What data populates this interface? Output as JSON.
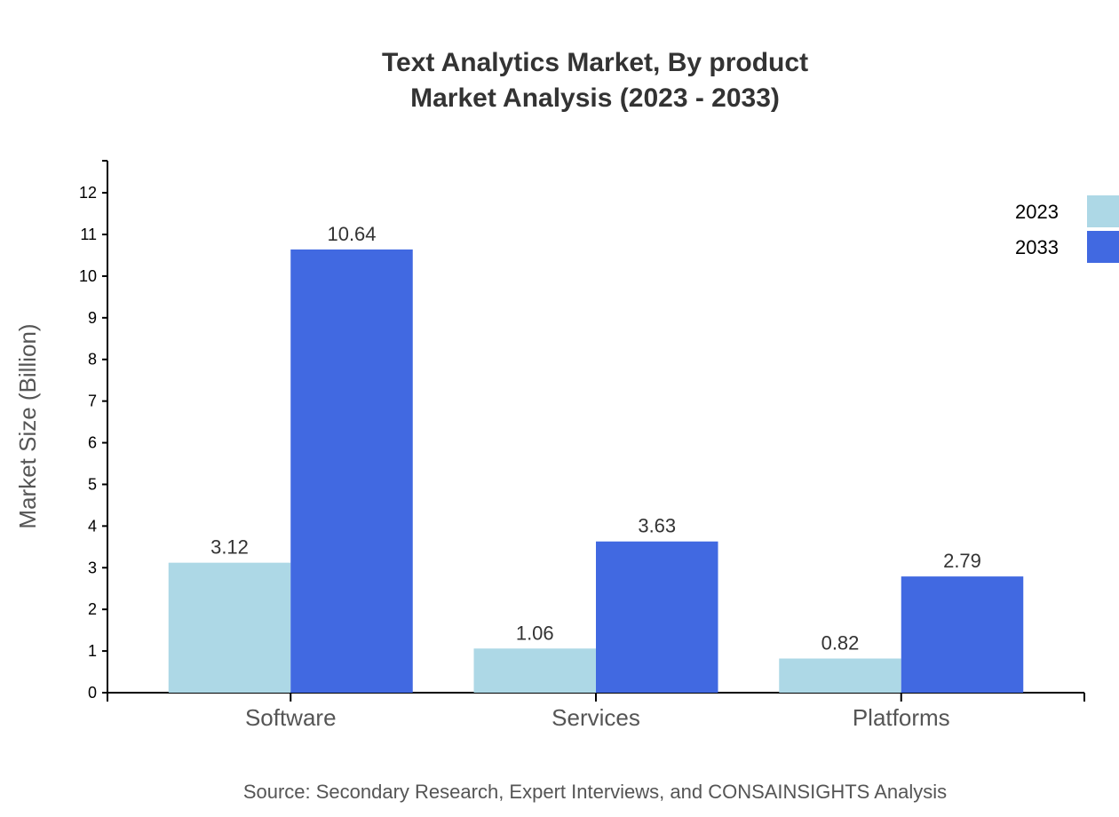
{
  "chart_data": {
    "type": "bar",
    "title_lines": [
      "Text Analytics Market, By product",
      "Market Analysis (2023 - 2033)"
    ],
    "categories": [
      "Software",
      "Services",
      "Platforms"
    ],
    "series": [
      {
        "name": "2023",
        "values": [
          3.12,
          1.06,
          0.82
        ],
        "color": "#ADD8E6"
      },
      {
        "name": "2033",
        "values": [
          10.64,
          3.63,
          2.79
        ],
        "color": "#4169E1"
      }
    ],
    "xlabel": "",
    "ylabel": "Market Size (Billion)",
    "ylim": [
      0,
      12.77
    ],
    "yticks": [
      0,
      1,
      2,
      3,
      4,
      5,
      6,
      7,
      8,
      9,
      10,
      11,
      12
    ],
    "grid": false,
    "legend_position": "top-right",
    "source": "Source: Secondary Research, Expert Interviews, and CONSAINSIGHTS Analysis"
  }
}
